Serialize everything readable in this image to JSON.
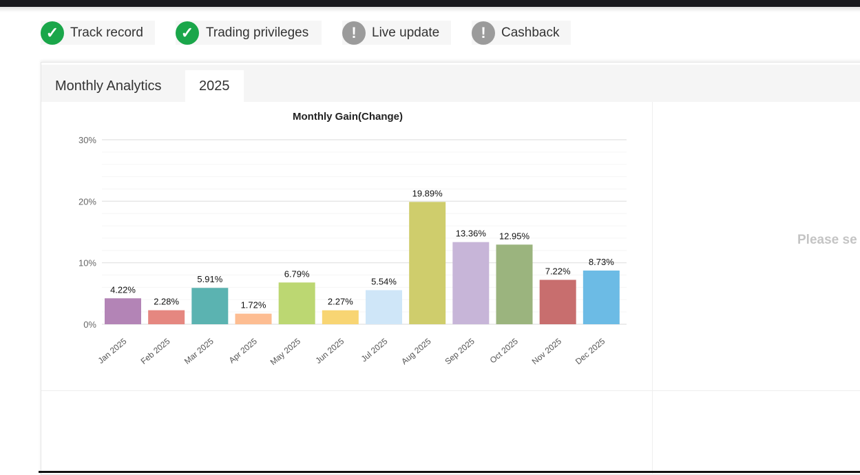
{
  "badges": [
    {
      "label": "Track record",
      "status": "ok",
      "icon": "check-circle-icon"
    },
    {
      "label": "Trading privileges",
      "status": "ok",
      "icon": "check-circle-icon"
    },
    {
      "label": "Live update",
      "status": "warning",
      "icon": "exclamation-circle-icon"
    },
    {
      "label": "Cashback",
      "status": "warning",
      "icon": "exclamation-circle-icon"
    }
  ],
  "tabs": {
    "title": "Monthly Analytics",
    "active": "2025"
  },
  "side_message": "Please se",
  "chart_data": {
    "type": "bar",
    "title": "Monthly Gain(Change)",
    "categories": [
      "Jan 2025",
      "Feb 2025",
      "Mar 2025",
      "Apr 2025",
      "May 2025",
      "Jun 2025",
      "Jul 2025",
      "Aug 2025",
      "Sep 2025",
      "Oct 2025",
      "Nov 2025",
      "Dec 2025"
    ],
    "values": [
      4.22,
      2.28,
      5.91,
      1.72,
      6.79,
      2.27,
      5.54,
      19.89,
      13.36,
      12.95,
      7.22,
      8.73
    ],
    "labels": [
      "4.22%",
      "2.28%",
      "5.91%",
      "1.72%",
      "6.79%",
      "2.27%",
      "5.54%",
      "19.89%",
      "13.36%",
      "12.95%",
      "7.22%",
      "8.73%"
    ],
    "colors": [
      "#b384b6",
      "#e58780",
      "#5bb3b1",
      "#fdbd92",
      "#bcd772",
      "#f8d573",
      "#cfe6f8",
      "#cfcd6c",
      "#c7b5d8",
      "#9bb47e",
      "#c86e6e",
      "#6cbbe5"
    ],
    "yticks": [
      "0%",
      "10%",
      "20%",
      "30%"
    ],
    "ylim": [
      0,
      30
    ],
    "grid": true
  }
}
